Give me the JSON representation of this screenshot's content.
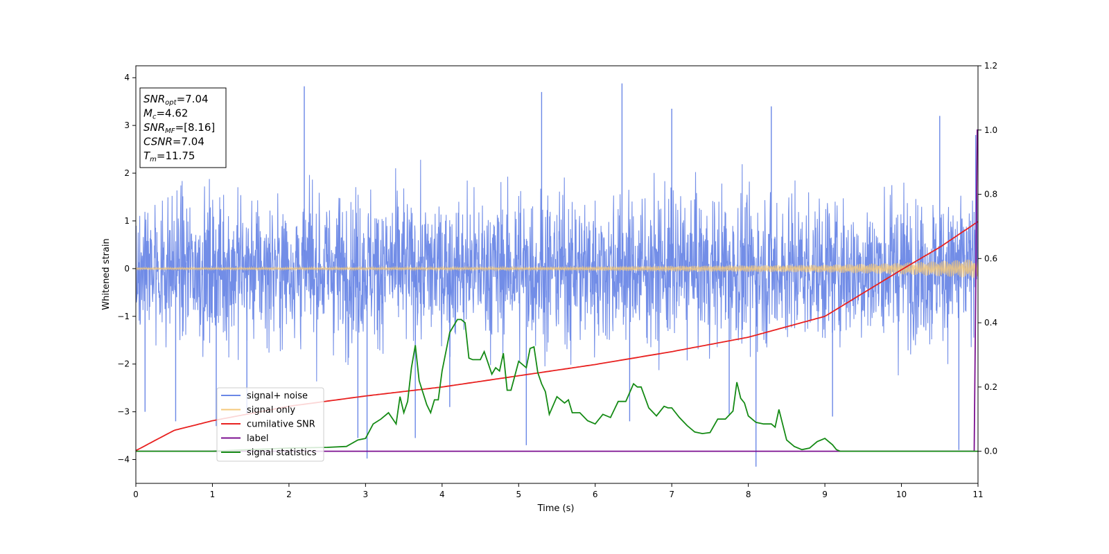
{
  "chart_data": {
    "type": "line",
    "title": "",
    "xlabel": "Time (s)",
    "ylabel": "Whitened strain",
    "xlim": [
      0,
      11
    ],
    "ylim": [
      -4.5,
      4.25
    ],
    "y2lim": [
      -0.1,
      1.2
    ],
    "grid": false,
    "legend_position": "lower-left",
    "x_ticks": [
      "0",
      "1",
      "2",
      "3",
      "4",
      "5",
      "6",
      "7",
      "8",
      "9",
      "10",
      "11"
    ],
    "y_ticks": [
      "4",
      "3",
      "2",
      "1",
      "0",
      "−1",
      "−2",
      "−3",
      "−4"
    ],
    "y2_ticks": [
      "1.2",
      "1.0",
      "0.8",
      "0.6",
      "0.4",
      "0.2",
      "0.0"
    ],
    "annotation": {
      "snr_opt": {
        "main": "SNR",
        "sub": "opt",
        "value": "=7.04"
      },
      "mc": {
        "main": "M",
        "sub": "c",
        "value": "=4.62"
      },
      "snr_mf": {
        "main": "SNR",
        "sub": "MF",
        "value": "=[8.16]"
      },
      "csnr": {
        "main": "CSNR",
        "sub": "",
        "value": "=7.04"
      },
      "tm": {
        "main": "T",
        "sub": "m",
        "value": "=11.75"
      }
    },
    "series": [
      {
        "name": "signal+ noise",
        "axis": "left",
        "color": "#6a87e6",
        "description": "dense whitened noise samples, roughly ±2.5 with peaks to 3.9 / -4.15",
        "spikes": [
          [
            0.12,
            -3.0
          ],
          [
            0.52,
            -3.2
          ],
          [
            1.05,
            -3.3
          ],
          [
            1.45,
            -3.05
          ],
          [
            2.2,
            3.82
          ],
          [
            2.9,
            -3.55
          ],
          [
            3.02,
            -3.98
          ],
          [
            3.65,
            -3.55
          ],
          [
            4.1,
            -2.9
          ],
          [
            5.1,
            -3.7
          ],
          [
            5.3,
            3.7
          ],
          [
            6.35,
            3.88
          ],
          [
            6.45,
            -3.2
          ],
          [
            7.0,
            3.35
          ],
          [
            7.75,
            -3.05
          ],
          [
            8.1,
            -4.15
          ],
          [
            8.3,
            3.4
          ],
          [
            9.1,
            -3.1
          ],
          [
            10.5,
            3.2
          ],
          [
            10.75,
            -3.8
          ],
          [
            10.97,
            2.8
          ]
        ]
      },
      {
        "name": "signal only",
        "axis": "left",
        "color": "#f5c97a",
        "envelope": {
          "x": [
            0,
            5,
            9,
            10,
            11
          ],
          "amp": [
            0.02,
            0.03,
            0.08,
            0.12,
            0.2
          ]
        }
      },
      {
        "name": "cumilative SNR",
        "axis": "right",
        "color": "#e8201f",
        "x": [
          0,
          0.5,
          1,
          2,
          3,
          4,
          5,
          6,
          7,
          8,
          9,
          10,
          10.5,
          11
        ],
        "values": [
          0.002,
          0.065,
          0.095,
          0.14,
          0.172,
          0.2,
          0.235,
          0.27,
          0.31,
          0.355,
          0.42,
          0.565,
          0.635,
          0.715
        ]
      },
      {
        "name": "label",
        "axis": "right",
        "color": "#7b0f8f",
        "x": [
          0,
          10.95,
          10.99,
          11
        ],
        "values": [
          0.0,
          0.0,
          1.0,
          1.0
        ]
      },
      {
        "name": "signal statistics",
        "axis": "right",
        "color": "#148a14",
        "x": [
          0,
          1,
          2,
          2.5,
          2.75,
          2.9,
          3.0,
          3.1,
          3.2,
          3.3,
          3.4,
          3.45,
          3.5,
          3.55,
          3.6,
          3.65,
          3.7,
          3.8,
          3.85,
          3.9,
          3.95,
          4.0,
          4.1,
          4.2,
          4.25,
          4.3,
          4.35,
          4.4,
          4.5,
          4.55,
          4.6,
          4.65,
          4.7,
          4.75,
          4.8,
          4.85,
          4.9,
          4.95,
          5.0,
          5.1,
          5.15,
          5.2,
          5.25,
          5.3,
          5.35,
          5.4,
          5.5,
          5.6,
          5.65,
          5.7,
          5.8,
          5.9,
          6.0,
          6.1,
          6.2,
          6.3,
          6.4,
          6.5,
          6.55,
          6.6,
          6.7,
          6.8,
          6.9,
          6.95,
          7.0,
          7.1,
          7.2,
          7.3,
          7.4,
          7.5,
          7.6,
          7.7,
          7.8,
          7.85,
          7.9,
          7.95,
          8.0,
          8.1,
          8.2,
          8.3,
          8.35,
          8.4,
          8.5,
          8.6,
          8.7,
          8.8,
          8.9,
          9.0,
          9.1,
          9.15,
          9.2,
          9.3,
          9.4,
          9.5,
          10,
          11
        ],
        "values": [
          0.0,
          0.0,
          0.01,
          0.012,
          0.015,
          0.035,
          0.04,
          0.085,
          0.1,
          0.12,
          0.085,
          0.17,
          0.12,
          0.155,
          0.26,
          0.33,
          0.22,
          0.145,
          0.12,
          0.16,
          0.16,
          0.25,
          0.37,
          0.41,
          0.41,
          0.4,
          0.29,
          0.285,
          0.285,
          0.31,
          0.275,
          0.24,
          0.26,
          0.25,
          0.305,
          0.19,
          0.19,
          0.235,
          0.28,
          0.26,
          0.32,
          0.325,
          0.245,
          0.21,
          0.185,
          0.115,
          0.17,
          0.15,
          0.16,
          0.12,
          0.12,
          0.095,
          0.085,
          0.115,
          0.105,
          0.155,
          0.155,
          0.21,
          0.2,
          0.2,
          0.135,
          0.11,
          0.14,
          0.135,
          0.135,
          0.105,
          0.08,
          0.06,
          0.055,
          0.058,
          0.1,
          0.1,
          0.125,
          0.215,
          0.165,
          0.15,
          0.11,
          0.09,
          0.085,
          0.085,
          0.075,
          0.13,
          0.035,
          0.015,
          0.005,
          0.01,
          0.03,
          0.04,
          0.02,
          0.005,
          0.0,
          0.0,
          0.0,
          0.0,
          0.0,
          0.0
        ]
      }
    ]
  }
}
